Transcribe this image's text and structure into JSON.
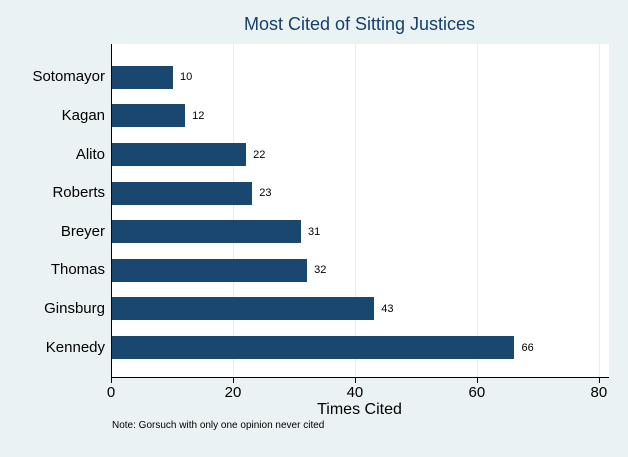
{
  "chart_data": {
    "type": "bar",
    "orientation": "horizontal",
    "title": "Most Cited of Sitting Justices",
    "categories": [
      "Sotomayor",
      "Kagan",
      "Alito",
      "Roberts",
      "Breyer",
      "Thomas",
      "Ginsburg",
      "Kennedy"
    ],
    "values": [
      10,
      12,
      22,
      23,
      31,
      32,
      43,
      66
    ],
    "bar_value_labels": [
      "10",
      "12",
      "22",
      "23",
      "31",
      "32",
      "43",
      "66"
    ],
    "xlabel": "Times Cited",
    "xticks": [
      0,
      20,
      40,
      60,
      80
    ],
    "xtick_labels": [
      "0",
      "20",
      "40",
      "60",
      "80"
    ],
    "xlim": [
      0,
      81.5
    ],
    "grid": true,
    "legend": "none",
    "note": "Note: Gorsuch with only one opinion never cited",
    "colors": {
      "bar": "#1a476f",
      "title": "#14406b",
      "background": "#eaf2f3",
      "plot_background": "#ffffff",
      "gridline": "#e4eef0",
      "axis": "#000000",
      "text": "#000000"
    }
  }
}
